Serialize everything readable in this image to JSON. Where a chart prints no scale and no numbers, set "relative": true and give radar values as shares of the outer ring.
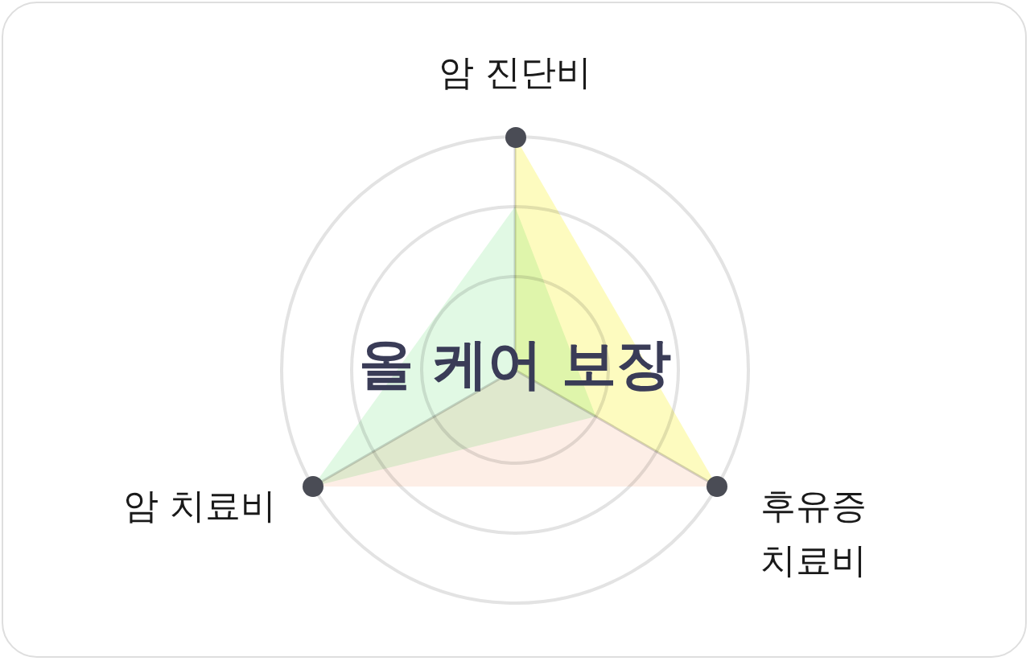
{
  "chart_data": {
    "type": "radar",
    "title": "올 케어 보장",
    "categories": [
      "암 진단비",
      "후유증\n치료비",
      "암 치료비"
    ],
    "relative": true,
    "grid": true,
    "series": [
      {
        "color": "#fdfbbf",
        "values": [
          1,
          1,
          0
        ]
      },
      {
        "color": "#e1f9e4",
        "values": [
          0.7,
          0.4,
          1
        ]
      },
      {
        "color": "#fdeee6",
        "values": [
          0,
          1,
          1
        ]
      }
    ]
  }
}
